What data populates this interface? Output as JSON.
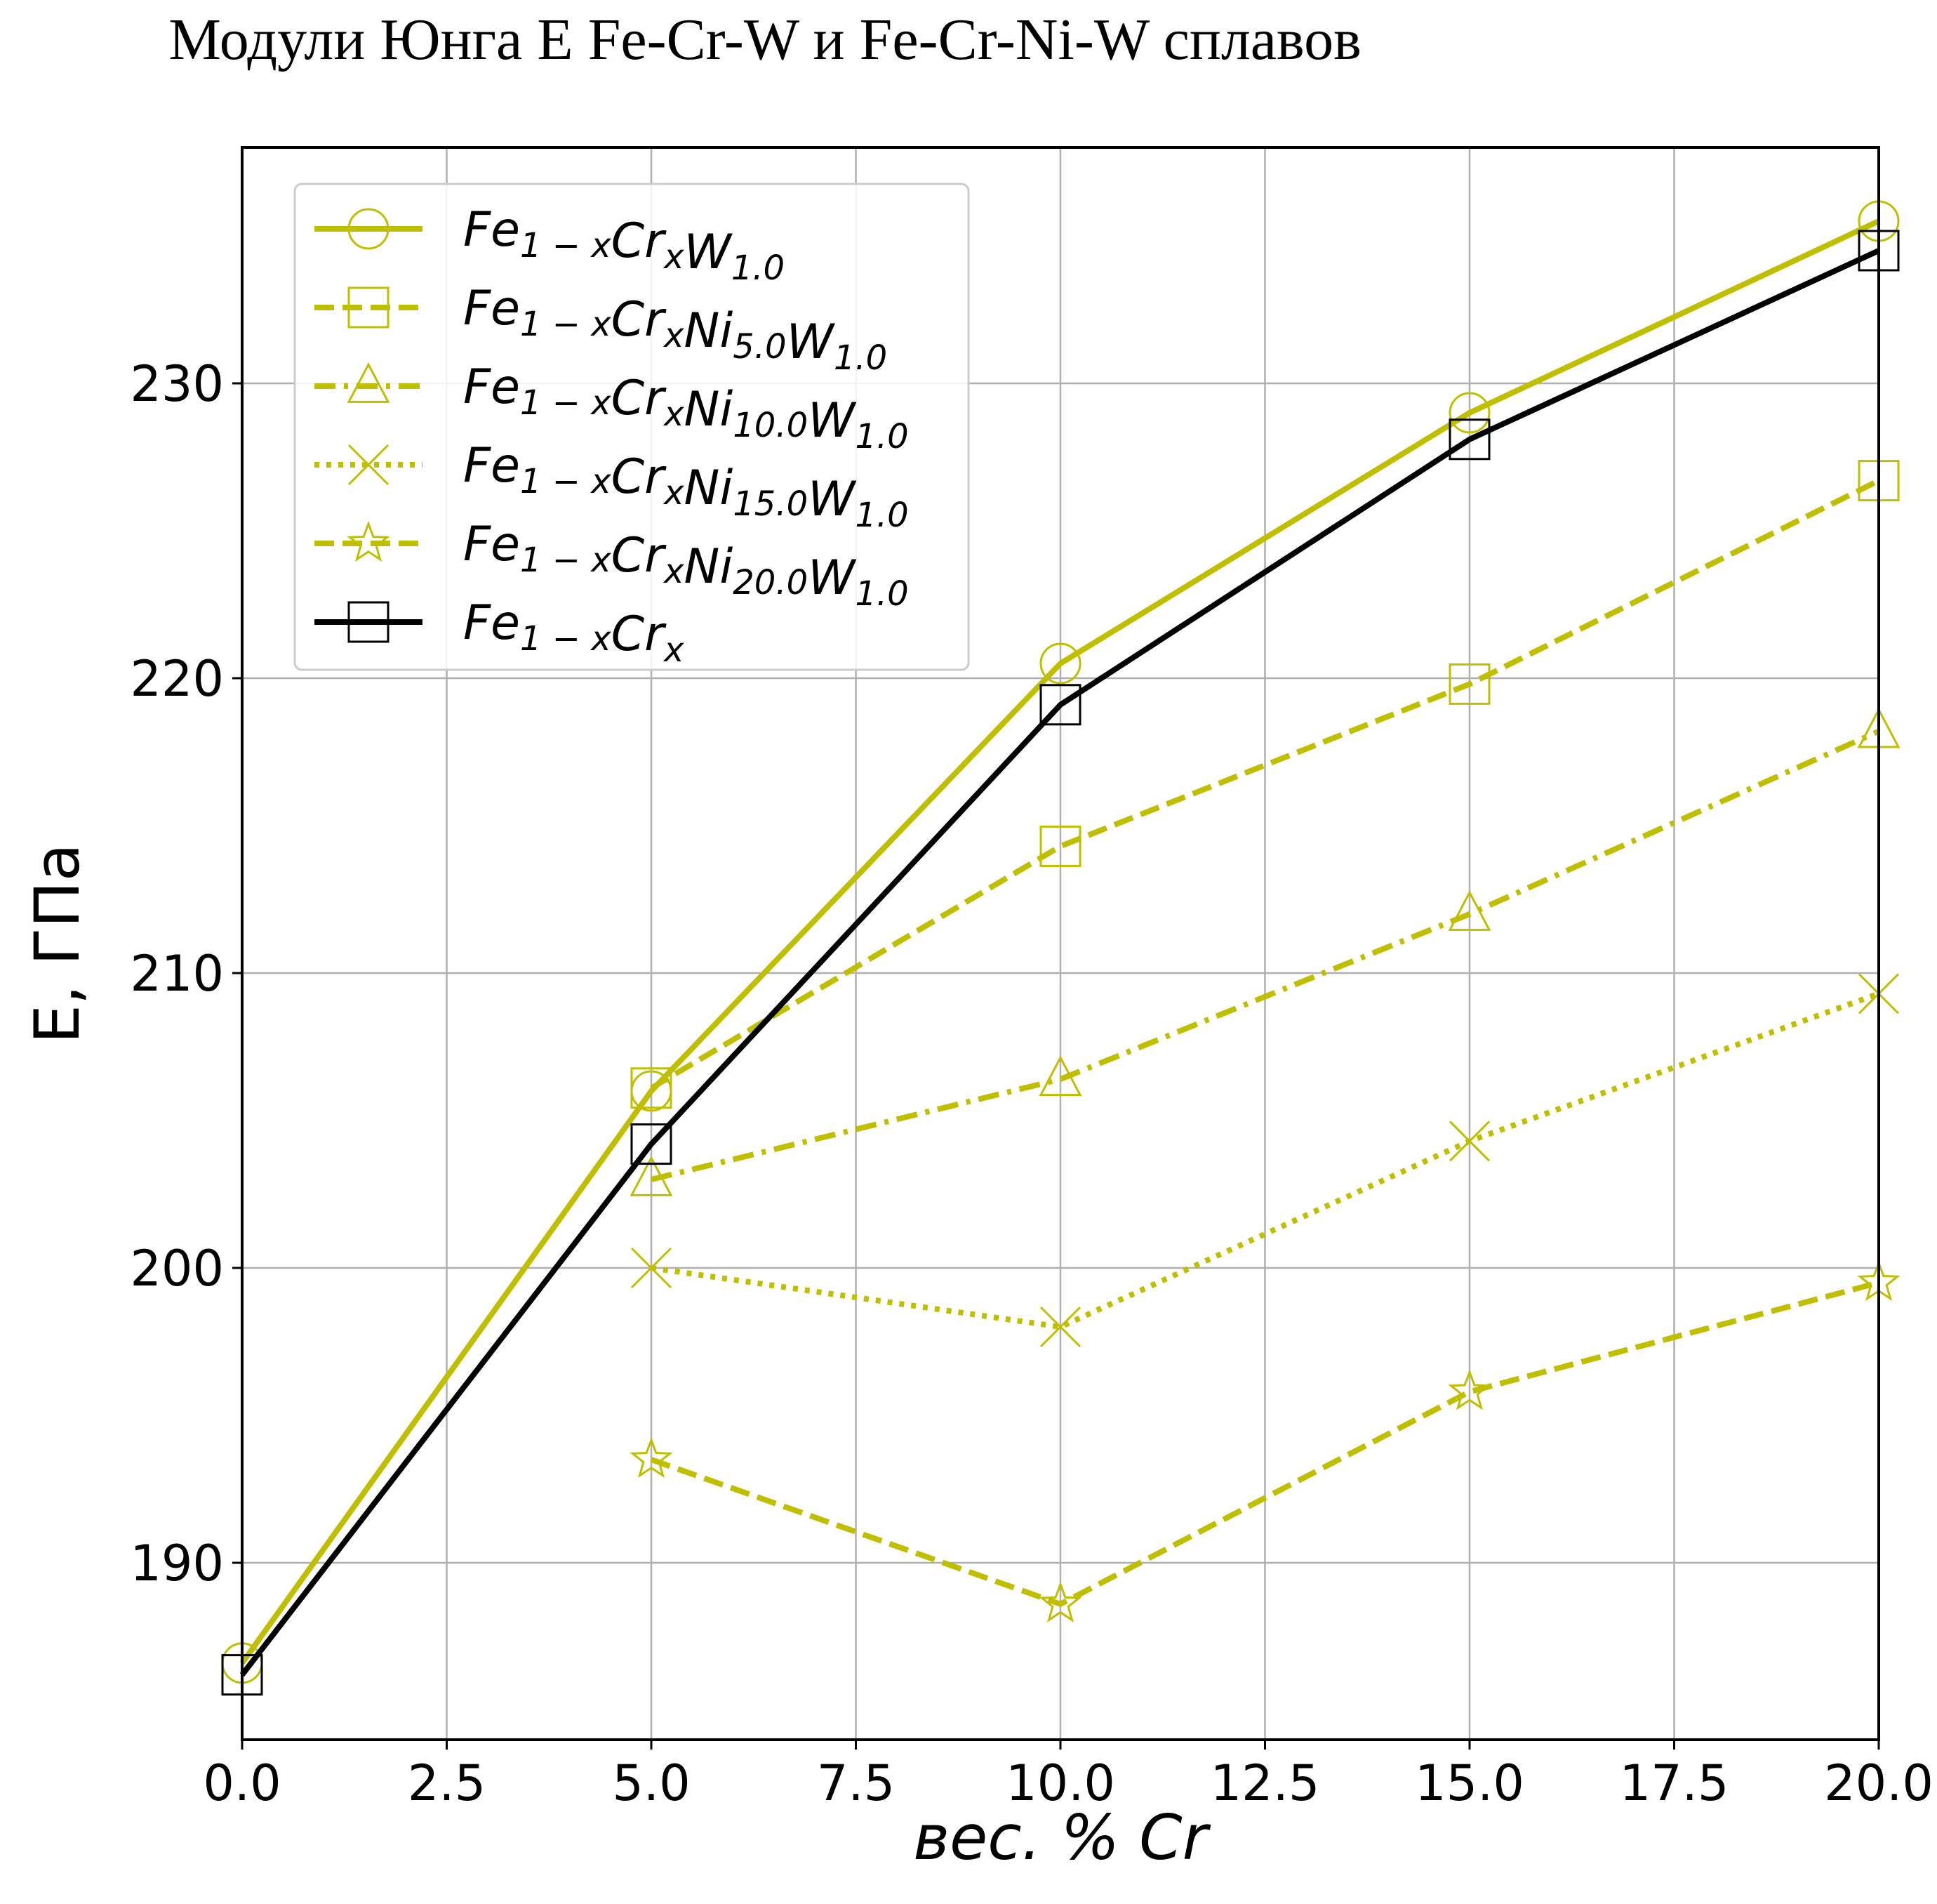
{
  "chart_data": {
    "type": "line",
    "title": "Модули Юнга E Fe-Cr-W и Fe-Cr-Ni-W сплавов",
    "xlabel": "вес. % Cr",
    "ylabel": "E, ГПа",
    "xlim": [
      0,
      20
    ],
    "ylim": [
      184,
      238
    ],
    "xticks": [
      "0.0",
      "2.5",
      "5.0",
      "7.5",
      "10.0",
      "12.5",
      "15.0",
      "17.5",
      "20.0"
    ],
    "yticks": [
      "190",
      "200",
      "210",
      "220",
      "230"
    ],
    "grid": true,
    "legend_position": "top-left",
    "colors": {
      "olive": "#bfbf00",
      "black": "#000000"
    },
    "series": [
      {
        "name": "Fe_{1-x}Cr_xW_{1.0}",
        "base": "Fe",
        "sub1": "1 − x",
        "mid": "Cr",
        "sub2": "x",
        "ni": "",
        "niSub": "",
        "w": "W",
        "wSub": "1.0",
        "color": "#bfbf00",
        "style": "solid",
        "marker": "circle",
        "x": [
          0,
          5,
          10,
          15,
          20
        ],
        "y": [
          186.6,
          206.0,
          220.5,
          229.0,
          235.5
        ]
      },
      {
        "name": "Fe_{1-x}Cr_xNi_{5.0}W_{1.0}",
        "base": "Fe",
        "sub1": "1 − x",
        "mid": "Cr",
        "sub2": "x",
        "ni": "Ni",
        "niSub": "5.0",
        "w": "W",
        "wSub": "1.0",
        "color": "#bfbf00",
        "style": "dashed",
        "marker": "square",
        "x": [
          5,
          10,
          15,
          20
        ],
        "y": [
          206.1,
          214.3,
          219.8,
          226.7
        ]
      },
      {
        "name": "Fe_{1-x}Cr_xNi_{10.0}W_{1.0}",
        "base": "Fe",
        "sub1": "1 − x",
        "mid": "Cr",
        "sub2": "x",
        "ni": "Ni",
        "niSub": "10.0",
        "w": "W",
        "wSub": "1.0",
        "color": "#bfbf00",
        "style": "dashdot",
        "marker": "triangle",
        "x": [
          5,
          10,
          15,
          20
        ],
        "y": [
          203.0,
          206.4,
          212.0,
          218.2
        ]
      },
      {
        "name": "Fe_{1-x}Cr_xNi_{15.0}W_{1.0}",
        "base": "Fe",
        "sub1": "1 − x",
        "mid": "Cr",
        "sub2": "x",
        "ni": "Ni",
        "niSub": "15.0",
        "w": "W",
        "wSub": "1.0",
        "color": "#bfbf00",
        "style": "dotted",
        "marker": "x",
        "x": [
          5,
          10,
          15,
          20
        ],
        "y": [
          200.0,
          198.0,
          204.3,
          209.3
        ]
      },
      {
        "name": "Fe_{1-x}Cr_xNi_{20.0}W_{1.0}",
        "base": "Fe",
        "sub1": "1 − x",
        "mid": "Cr",
        "sub2": "x",
        "ni": "Ni",
        "niSub": "20.0",
        "w": "W",
        "wSub": "1.0",
        "color": "#bfbf00",
        "style": "dashed",
        "marker": "star",
        "x": [
          5,
          10,
          15,
          20
        ],
        "y": [
          193.5,
          188.6,
          195.8,
          199.5
        ]
      },
      {
        "name": "Fe_{1-x}Cr_x",
        "base": "Fe",
        "sub1": "1 − x",
        "mid": "Cr",
        "sub2": "x",
        "ni": "",
        "niSub": "",
        "w": "",
        "wSub": "",
        "color": "#000000",
        "style": "solid",
        "marker": "square",
        "x": [
          0,
          5,
          10,
          15,
          20
        ],
        "y": [
          186.2,
          204.2,
          219.1,
          228.1,
          234.5
        ]
      }
    ]
  }
}
